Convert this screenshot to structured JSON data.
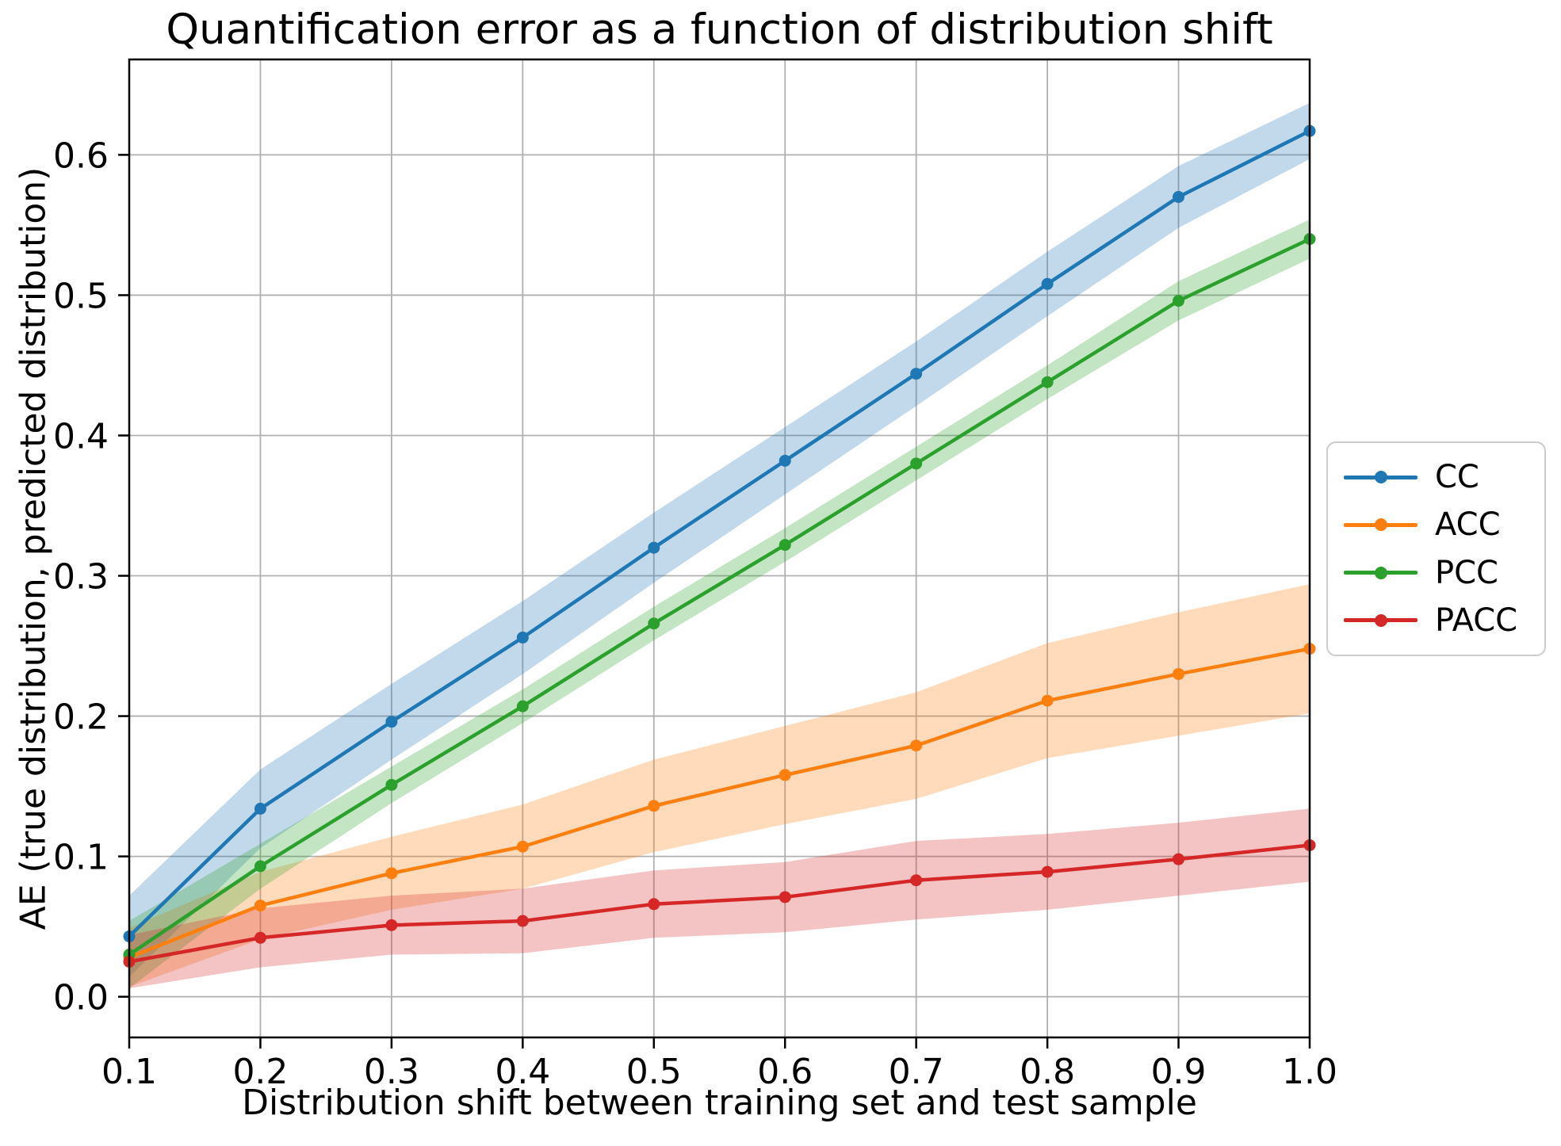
{
  "figure": {
    "background": "#ffffff"
  },
  "chart_data": {
    "type": "line",
    "title": "Quantification error as a function of distribution shift",
    "xlabel": "Distribution shift between training set and test sample",
    "ylabel": "AE (true distribution, predicted distribution)",
    "x": [
      0.1,
      0.2,
      0.3,
      0.4,
      0.5,
      0.6,
      0.7,
      0.8,
      0.9,
      1.0
    ],
    "xlim": [
      0.1,
      1.0
    ],
    "ylim": [
      -0.029,
      0.668
    ],
    "xtick_labels": [
      "0.1",
      "0.2",
      "0.3",
      "0.4",
      "0.5",
      "0.6",
      "0.7",
      "0.8",
      "0.9",
      "1.0"
    ],
    "ytick_values": [
      0.0,
      0.1,
      0.2,
      0.3,
      0.4,
      0.5,
      0.6
    ],
    "ytick_labels": [
      "0.0",
      "0.1",
      "0.2",
      "0.3",
      "0.4",
      "0.5",
      "0.6"
    ],
    "grid": true,
    "grid_color": "#b0b0b0",
    "band_opacity": 0.28,
    "legend": {
      "position": "right-outside",
      "entries": [
        "CC",
        "ACC",
        "PCC",
        "PACC"
      ]
    },
    "series": [
      {
        "name": "CC",
        "color": "#1f77b4",
        "values": [
          0.043,
          0.134,
          0.196,
          0.256,
          0.32,
          0.382,
          0.444,
          0.508,
          0.57,
          0.617
        ],
        "band_halfwidth": [
          0.029,
          0.028,
          0.027,
          0.026,
          0.025,
          0.024,
          0.023,
          0.023,
          0.022,
          0.02
        ]
      },
      {
        "name": "ACC",
        "color": "#ff7f0e",
        "values": [
          0.028,
          0.065,
          0.088,
          0.107,
          0.136,
          0.158,
          0.179,
          0.211,
          0.23,
          0.248
        ],
        "band_halfwidth": [
          0.021,
          0.024,
          0.026,
          0.03,
          0.033,
          0.035,
          0.038,
          0.041,
          0.044,
          0.046
        ]
      },
      {
        "name": "PCC",
        "color": "#2ca02c",
        "values": [
          0.03,
          0.093,
          0.151,
          0.207,
          0.266,
          0.322,
          0.38,
          0.438,
          0.496,
          0.54
        ],
        "band_halfwidth": [
          0.024,
          0.016,
          0.013,
          0.012,
          0.012,
          0.012,
          0.012,
          0.012,
          0.014,
          0.014
        ]
      },
      {
        "name": "PACC",
        "color": "#d62728",
        "values": [
          0.025,
          0.042,
          0.051,
          0.054,
          0.066,
          0.071,
          0.083,
          0.089,
          0.098,
          0.108
        ],
        "band_halfwidth": [
          0.019,
          0.021,
          0.021,
          0.023,
          0.024,
          0.025,
          0.028,
          0.027,
          0.026,
          0.026
        ]
      }
    ]
  }
}
